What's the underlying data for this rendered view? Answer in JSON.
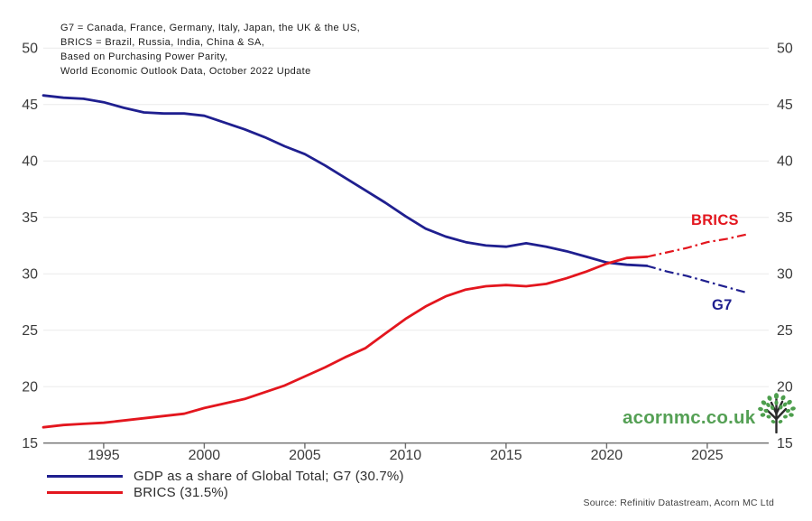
{
  "chart_data": {
    "type": "line",
    "notes": [
      "G7 = Canada, France, Germany, Italy, Japan, the UK & the US,",
      "BRICS = Brazil, Russia, India, China & SA,",
      "Based on Purchasing Power Parity,",
      "World Economic Outlook Data, October 2022 Update"
    ],
    "x": [
      1992,
      1993,
      1994,
      1995,
      1996,
      1997,
      1998,
      1999,
      2000,
      2001,
      2002,
      2003,
      2004,
      2005,
      2006,
      2007,
      2008,
      2009,
      2010,
      2011,
      2012,
      2013,
      2014,
      2015,
      2016,
      2017,
      2018,
      2019,
      2020,
      2021,
      2022,
      2023,
      2024,
      2025,
      2026,
      2027
    ],
    "series": [
      {
        "name": "G7",
        "legend_label": "GDP as a share of Global Total; G7 (30.7%)",
        "color": "#1f1f8f",
        "current_value_pct": 30.7,
        "forecast_from": 2022,
        "values": [
          45.8,
          45.6,
          45.5,
          45.2,
          44.7,
          44.3,
          44.2,
          44.2,
          44.0,
          43.4,
          42.8,
          42.1,
          41.3,
          40.6,
          39.6,
          38.5,
          37.4,
          36.3,
          35.1,
          34.0,
          33.3,
          32.8,
          32.5,
          32.4,
          32.7,
          32.4,
          32.0,
          31.5,
          31.0,
          30.8,
          30.7,
          30.2,
          29.8,
          29.3,
          28.8,
          28.3
        ]
      },
      {
        "name": "BRICS",
        "legend_label": "BRICS (31.5%)",
        "color": "#e3161e",
        "current_value_pct": 31.5,
        "forecast_from": 2022,
        "values": [
          16.4,
          16.6,
          16.7,
          16.8,
          17.0,
          17.2,
          17.4,
          17.6,
          18.1,
          18.5,
          18.9,
          19.5,
          20.1,
          20.9,
          21.7,
          22.6,
          23.4,
          24.7,
          26.0,
          27.1,
          28.0,
          28.6,
          28.9,
          29.0,
          28.9,
          29.1,
          29.6,
          30.2,
          30.9,
          31.4,
          31.5,
          31.9,
          32.3,
          32.8,
          33.1,
          33.5
        ]
      }
    ],
    "xlabel": "",
    "ylabel": "",
    "ylim": [
      15,
      50
    ],
    "xlim": [
      1992,
      2027
    ],
    "y_ticks": [
      15,
      20,
      25,
      30,
      35,
      40,
      45,
      50
    ],
    "x_ticks": [
      1995,
      2000,
      2005,
      2010,
      2015,
      2020,
      2025
    ],
    "grid": "horizontal-faint",
    "forecast_style": "dash-dot",
    "legend_position": "bottom-left",
    "y_axis_sides": "both"
  },
  "logo": {
    "text": "acornmc.co.uk",
    "icon": "tree-icon",
    "color": "#55a055"
  },
  "source": "Source: Refinitiv Datastream, Acorn MC Ltd",
  "colors": {
    "g7_line": "#1f1f8f",
    "brics_line": "#e3161e",
    "gridline": "#eaeaea",
    "axis": "#6e6e6e",
    "tick_label": "#3c3c3c",
    "logo_green": "#55a055"
  }
}
